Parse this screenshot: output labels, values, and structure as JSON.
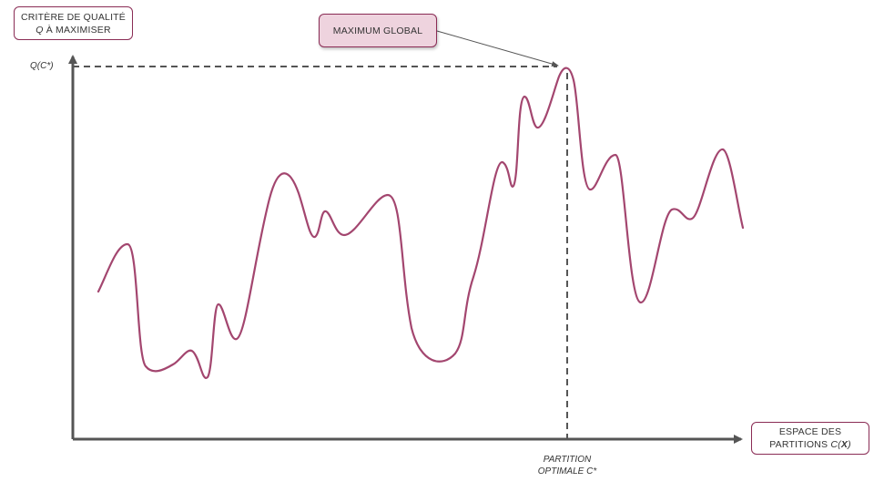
{
  "diagram": {
    "y_axis_box": {
      "line1": "CRITÈRE DE QUALITÉ",
      "line2_var": "Q",
      "line2_rest": " À MAXIMISER"
    },
    "x_axis_box": {
      "line1": "ESPACE DES",
      "line2_text": "PARTITIONS ",
      "line2_func": "C(",
      "line2_var": "X",
      "line2_close": ")"
    },
    "max_callout": {
      "label": "MAXIMUM GLOBAL"
    },
    "y_marker": {
      "label": "Q(C*)"
    },
    "x_marker": {
      "line1": "PARTITION",
      "line2": "OPTIMALE C*"
    },
    "colors": {
      "curve": "#a3466f",
      "axis": "#555555",
      "box_border": "#8a2c55",
      "callout_fill": "#eed3de"
    }
  }
}
